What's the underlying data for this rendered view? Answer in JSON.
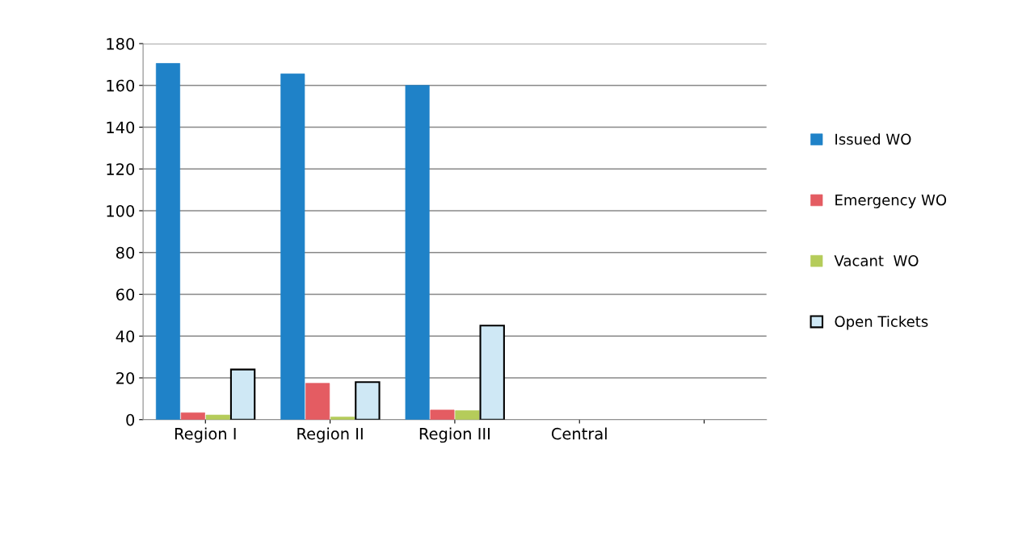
{
  "chart_data": {
    "type": "bar",
    "categories": [
      "Region I",
      "Region II",
      "Region III",
      "Central",
      null
    ],
    "series": [
      {
        "name": "Issued WO",
        "color": "#1f82c8",
        "values": [
          170.5,
          165.5,
          160,
          0,
          null
        ]
      },
      {
        "name": "Emergency WO",
        "color": "#e45c62",
        "values": [
          3.3,
          17.4,
          4.6,
          0,
          null
        ]
      },
      {
        "name": "Vacant  WO",
        "color": "#b5cc5a",
        "values": [
          2.2,
          1.3,
          4.3,
          0,
          null
        ]
      },
      {
        "name": "Open Tickets",
        "color": "#cfe8f5",
        "values": [
          24,
          18,
          45,
          0,
          null
        ]
      }
    ],
    "ylim": [
      0,
      180
    ],
    "yticks": [
      0,
      20,
      40,
      60,
      80,
      100,
      120,
      140,
      160,
      180
    ],
    "grid": "y",
    "legend": "right"
  }
}
